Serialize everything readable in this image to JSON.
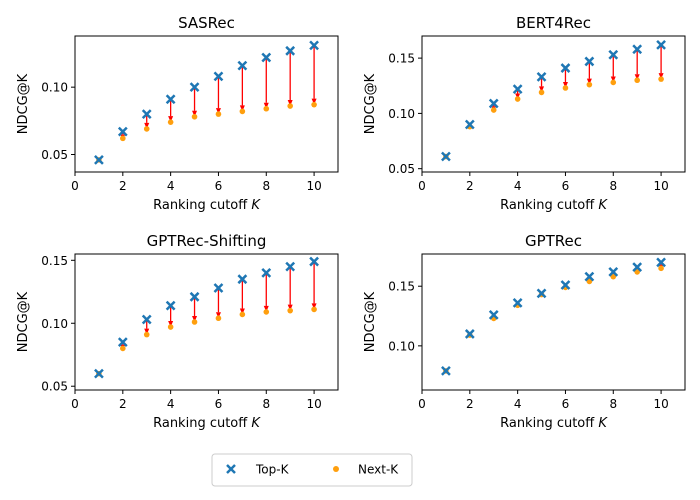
{
  "figure": {
    "legend": {
      "placement": "bottom-center",
      "entries": [
        {
          "label": "Top-K",
          "marker": "x",
          "color": "#1f77b4"
        },
        {
          "label": "Next-K",
          "marker": "dot",
          "color": "#ff9f0e"
        }
      ]
    },
    "arrow_color": "#ff0000"
  },
  "chart_data": [
    {
      "type": "scatter",
      "title": "SASRec",
      "xlabel": "Ranking cutoff K",
      "ylabel": "NDCG@K",
      "xlim": [
        0,
        11
      ],
      "ylim": [
        0.037,
        0.138
      ],
      "xticks": [
        0,
        2,
        4,
        6,
        8,
        10
      ],
      "yticks": [
        0.05,
        0.1
      ],
      "ytick_labels": [
        "0.05",
        "0.10"
      ],
      "x": [
        1,
        2,
        3,
        4,
        5,
        6,
        7,
        8,
        9,
        10
      ],
      "series": [
        {
          "name": "Top-K",
          "values": [
            0.046,
            0.067,
            0.08,
            0.091,
            0.1,
            0.108,
            0.116,
            0.122,
            0.127,
            0.131
          ]
        },
        {
          "name": "Next-K",
          "values": [
            0.046,
            0.062,
            0.069,
            0.074,
            0.078,
            0.08,
            0.082,
            0.084,
            0.086,
            0.087
          ]
        }
      ]
    },
    {
      "type": "scatter",
      "title": "BERT4Rec",
      "xlabel": "Ranking cutoff K",
      "ylabel": "NDCG@K",
      "xlim": [
        0,
        11
      ],
      "ylim": [
        0.047,
        0.17
      ],
      "xticks": [
        0,
        2,
        4,
        6,
        8,
        10
      ],
      "yticks": [
        0.05,
        0.1,
        0.15
      ],
      "ytick_labels": [
        "0.05",
        "0.10",
        "0.15"
      ],
      "x": [
        1,
        2,
        3,
        4,
        5,
        6,
        7,
        8,
        9,
        10
      ],
      "series": [
        {
          "name": "Top-K",
          "values": [
            0.061,
            0.09,
            0.109,
            0.122,
            0.133,
            0.141,
            0.147,
            0.153,
            0.158,
            0.162
          ]
        },
        {
          "name": "Next-K",
          "values": [
            0.061,
            0.088,
            0.103,
            0.113,
            0.119,
            0.123,
            0.126,
            0.128,
            0.13,
            0.131
          ]
        }
      ]
    },
    {
      "type": "scatter",
      "title": "GPTRec-Shifting",
      "xlabel": "Ranking cutoff K",
      "ylabel": "NDCG@K",
      "xlim": [
        0,
        11
      ],
      "ylim": [
        0.047,
        0.155
      ],
      "xticks": [
        0,
        2,
        4,
        6,
        8,
        10
      ],
      "yticks": [
        0.05,
        0.1,
        0.15
      ],
      "ytick_labels": [
        "0.05",
        "0.10",
        "0.15"
      ],
      "x": [
        1,
        2,
        3,
        4,
        5,
        6,
        7,
        8,
        9,
        10
      ],
      "series": [
        {
          "name": "Top-K",
          "values": [
            0.06,
            0.085,
            0.103,
            0.114,
            0.121,
            0.128,
            0.135,
            0.14,
            0.145,
            0.149
          ]
        },
        {
          "name": "Next-K",
          "values": [
            0.06,
            0.08,
            0.091,
            0.097,
            0.101,
            0.104,
            0.107,
            0.109,
            0.11,
            0.111
          ]
        }
      ]
    },
    {
      "type": "scatter",
      "title": "GPTRec",
      "xlabel": "Ranking cutoff K",
      "ylabel": "NDCG@K",
      "xlim": [
        0,
        11
      ],
      "ylim": [
        0.063,
        0.177
      ],
      "xticks": [
        0,
        2,
        4,
        6,
        8,
        10
      ],
      "yticks": [
        0.1,
        0.15
      ],
      "ytick_labels": [
        "0.10",
        "0.15"
      ],
      "x": [
        1,
        2,
        3,
        4,
        5,
        6,
        7,
        8,
        9,
        10
      ],
      "series": [
        {
          "name": "Top-K",
          "values": [
            0.079,
            0.11,
            0.126,
            0.136,
            0.144,
            0.151,
            0.158,
            0.162,
            0.166,
            0.17
          ]
        },
        {
          "name": "Next-K",
          "values": [
            0.079,
            0.109,
            0.123,
            0.134,
            0.143,
            0.149,
            0.154,
            0.158,
            0.162,
            0.165
          ]
        }
      ]
    }
  ]
}
